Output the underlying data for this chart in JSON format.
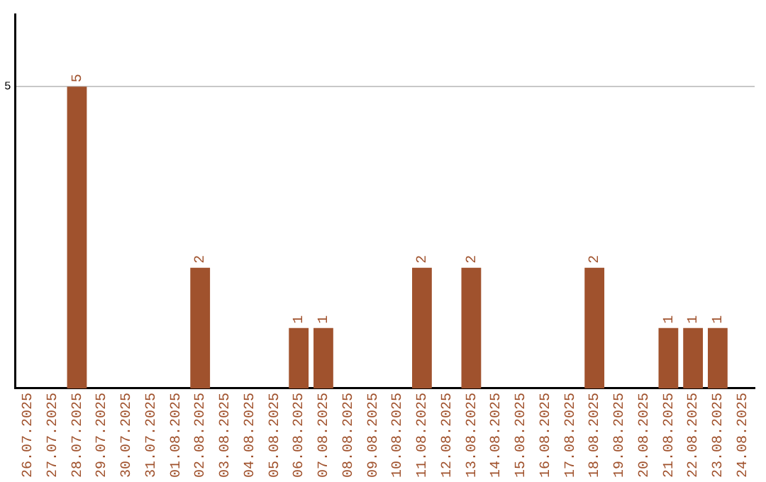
{
  "chart_data": {
    "type": "bar",
    "categories": [
      "26.07.2025",
      "27.07.2025",
      "28.07.2025",
      "29.07.2025",
      "30.07.2025",
      "31.07.2025",
      "01.08.2025",
      "02.08.2025",
      "03.08.2025",
      "04.08.2025",
      "05.08.2025",
      "06.08.2025",
      "07.08.2025",
      "08.08.2025",
      "09.08.2025",
      "10.08.2025",
      "11.08.2025",
      "12.08.2025",
      "13.08.2025",
      "14.08.2025",
      "15.08.2025",
      "16.08.2025",
      "17.08.2025",
      "18.08.2025",
      "19.08.2025",
      "20.08.2025",
      "21.08.2025",
      "22.08.2025",
      "23.08.2025",
      "24.08.2025"
    ],
    "values": [
      0,
      0,
      5,
      0,
      0,
      0,
      0,
      2,
      0,
      0,
      0,
      1,
      1,
      0,
      0,
      0,
      2,
      0,
      2,
      0,
      0,
      0,
      0,
      2,
      0,
      0,
      1,
      1,
      1,
      0
    ],
    "value_labels": [
      null,
      null,
      "5",
      null,
      null,
      null,
      null,
      "2",
      null,
      null,
      null,
      "1",
      "1",
      null,
      null,
      null,
      "2",
      null,
      "2",
      null,
      null,
      null,
      null,
      "2",
      null,
      null,
      "1",
      "1",
      "1",
      null
    ],
    "color": "#a0522d",
    "ylim": [
      0,
      6.2
    ],
    "yticks": [
      5
    ],
    "grid": "y"
  }
}
